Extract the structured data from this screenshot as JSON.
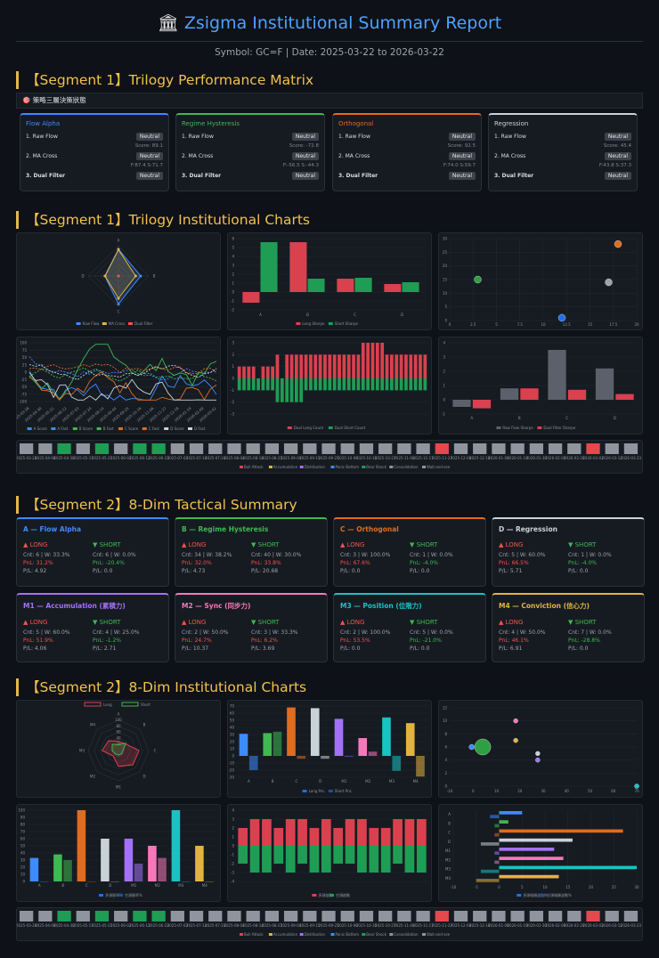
{
  "header": {
    "icon": "bank-icon",
    "title": "Zsigma Institutional Summary Report",
    "subtitle": "Symbol: GC=F | Date: 2025-03-22 to 2026-03-22"
  },
  "sections": {
    "s1": "【Segment 1】Trilogy Performance Matrix",
    "s2": "【Segment 1】Trilogy Institutional Charts",
    "s3": "【Segment 2】8-Dim Tactical Summary",
    "s4": "【Segment 2】8-Dim Institutional Charts"
  },
  "banner": "🎯 策略三層決策狀態",
  "trilogy": [
    {
      "title": "Flow Alpha",
      "color": "#3d8bff",
      "r1": "1. Raw Flow",
      "b1": "Neutral",
      "s1": "Score: 89.1",
      "r2": "2. MA Cross",
      "b2": "Neutral",
      "s2": "F:87.4 S:71.7",
      "r3": "3. Dual Filter",
      "b3": "Neutral"
    },
    {
      "title": "Regime Hysteresis",
      "color": "#3fb950",
      "r1": "1. Raw Flow",
      "b1": "Neutral",
      "s1": "Score: -72.8",
      "r2": "2. MA Cross",
      "b2": "Neutral",
      "s2": "F:-56.5 S:-44.3",
      "r3": "3. Dual Filter",
      "b3": "Neutral"
    },
    {
      "title": "Orthogonal",
      "color": "#e06c1f",
      "r1": "1. Raw Flow",
      "b1": "Neutral",
      "s1": "Score: 92.5",
      "r2": "2. MA Cross",
      "b2": "Neutral",
      "s2": "F:74.0 S:59.7",
      "r3": "3. Dual Filter",
      "b3": "Neutral"
    },
    {
      "title": "Regression",
      "color": "#c9d1d9",
      "r1": "1. Raw Flow",
      "b1": "Neutral",
      "s1": "Score: 45.4",
      "r2": "2. MA Cross",
      "b2": "Neutral",
      "s2": "F:43.8 S:37.3",
      "r3": "3. Dual Filter",
      "b3": "Neutral"
    }
  ],
  "dims": [
    {
      "title": "A — Flow Alpha",
      "color": "#3d8bff",
      "lh": "▲ LONG",
      "sh": "▼ SHORT",
      "l1": "Cnt: 6 | W: 33.3%",
      "l2": "PnL: 31.2%",
      "l3": "P/L: 4.92",
      "s1": "Cnt: 6 | W: 0.0%",
      "s2": "PnL: -20.4%",
      "s3": "P/L: 0.0"
    },
    {
      "title": "B — Regime Hysteresis",
      "color": "#3fb950",
      "lh": "▲ LONG",
      "sh": "▼ SHORT",
      "l1": "Cnt: 34 | W: 38.2%",
      "l2": "PnL: 32.0%",
      "l3": "P/L: 4.73",
      "s1": "Cnt: 40 | W: 30.0%",
      "s2": "PnL: 33.8%",
      "s3": "P/L: 20.68"
    },
    {
      "title": "C — Orthogonal",
      "color": "#e06c1f",
      "lh": "▲ LONG",
      "sh": "▼ SHORT",
      "l1": "Cnt: 3 | W: 100.0%",
      "l2": "PnL: 67.6%",
      "l3": "P/L: 0.0",
      "s1": "Cnt: 1 | W: 0.0%",
      "s2": "PnL: -4.0%",
      "s3": "P/L: 0.0"
    },
    {
      "title": "D — Regression",
      "color": "#c9d1d9",
      "lh": "▲ LONG",
      "sh": "▼ SHORT",
      "l1": "Cnt: 5 | W: 60.0%",
      "l2": "PnL: 66.5%",
      "l3": "P/L: 5.71",
      "s1": "Cnt: 1 | W: 0.0%",
      "s2": "PnL: -4.0%",
      "s3": "P/L: 0.0"
    },
    {
      "title": "M1 — Accumulation (累積力)",
      "color": "#a371f7",
      "lh": "▲ LONG",
      "sh": "▼ SHORT",
      "l1": "Cnt: 5 | W: 60.0%",
      "l2": "PnL: 51.9%",
      "l3": "P/L: 4.06",
      "s1": "Cnt: 4 | W: 25.0%",
      "s2": "PnL: -1.2%",
      "s3": "P/L: 2.71"
    },
    {
      "title": "M2 — Sync (同步力)",
      "color": "#f778ba",
      "lh": "▲ LONG",
      "sh": "▼ SHORT",
      "l1": "Cnt: 2 | W: 50.0%",
      "l2": "PnL: 24.7%",
      "l3": "P/L: 10.37",
      "s1": "Cnt: 3 | W: 33.3%",
      "s2": "PnL: 6.2%",
      "s3": "P/L: 3.69"
    },
    {
      "title": "M3 — Position (位階力)",
      "color": "#19c3c3",
      "lh": "▲ LONG",
      "sh": "▼ SHORT",
      "l1": "Cnt: 2 | W: 100.0%",
      "l2": "PnL: 53.5%",
      "l3": "P/L: 0.0",
      "s1": "Cnt: 5 | W: 0.0%",
      "s2": "PnL: -21.0%",
      "s3": "P/L: 0.0"
    },
    {
      "title": "M4 — Conviction (信心力)",
      "color": "#e3b341",
      "lh": "▲ LONG",
      "sh": "▼ SHORT",
      "l1": "Cnt: 4 | W: 50.0%",
      "l2": "PnL: 46.1%",
      "l3": "P/L: 6.91",
      "s1": "Cnt: 7 | W: 0.0%",
      "s2": "PnL: -28.8%",
      "s3": "P/L: 0.0"
    }
  ],
  "chart_data": [
    {
      "type": "radar",
      "axes": [
        "A",
        "B",
        "C",
        "D"
      ],
      "series": [
        {
          "name": "Raw Flow",
          "values": [
            89,
            -73,
            93,
            45
          ]
        },
        {
          "name": "MA Cross",
          "values": [
            87,
            -57,
            74,
            44
          ]
        },
        {
          "name": "Dual Filter",
          "values": [
            0,
            0,
            0,
            0
          ]
        }
      ]
    },
    {
      "type": "bar",
      "categories": [
        "A",
        "B",
        "C",
        "D"
      ],
      "series": [
        {
          "name": "Long Sharpe",
          "values": [
            -1.2,
            5.6,
            1.5,
            0.9
          ]
        },
        {
          "name": "Short Sharpe",
          "values": [
            5.6,
            1.5,
            1.6,
            1.1
          ]
        }
      ],
      "ylim": [
        -2,
        6
      ]
    },
    {
      "type": "scatter",
      "points": [
        {
          "x": 3,
          "y": 15
        },
        {
          "x": 12,
          "y": 1
        },
        {
          "x": 17,
          "y": 14
        },
        {
          "x": 18,
          "y": 28
        }
      ],
      "xlim": [
        0,
        20
      ],
      "ylim": [
        0,
        30
      ]
    },
    {
      "type": "line",
      "series": [
        {
          "name": "A Score"
        },
        {
          "name": "A Fast"
        },
        {
          "name": "B Score"
        },
        {
          "name": "B Fast"
        },
        {
          "name": "C Score"
        },
        {
          "name": "C Fast"
        },
        {
          "name": "D Score"
        },
        {
          "name": "D Fast"
        }
      ],
      "ylim": [
        -100,
        100
      ]
    },
    {
      "type": "bar",
      "series": [
        {
          "name": "Dual Long Count"
        },
        {
          "name": "Dual Short Count"
        }
      ],
      "ylim": [
        -3,
        3
      ]
    },
    {
      "type": "bar",
      "categories": [
        "A",
        "B",
        "C",
        "D"
      ],
      "series": [
        {
          "name": "Raw Flow Sharpe",
          "values": [
            -0.5,
            0.8,
            3.5,
            2.2
          ]
        },
        {
          "name": "Dual Filter Sharpe",
          "values": [
            -0.6,
            0.8,
            0.7,
            0.4
          ]
        }
      ],
      "ylim": [
        -1,
        4
      ]
    },
    {
      "type": "radar",
      "axes": [
        "A",
        "B",
        "C",
        "D",
        "M1",
        "M2",
        "M3",
        "M4"
      ],
      "series": [
        {
          "name": "Long",
          "values": [
            31,
            32,
            68,
            67,
            52,
            25,
            54,
            46
          ]
        },
        {
          "name": "Short",
          "values": [
            -20,
            34,
            -4,
            -4,
            -1,
            6,
            -21,
            -29
          ]
        }
      ],
      "ticks": [
        20,
        40,
        60,
        80,
        100
      ]
    },
    {
      "type": "bar",
      "categories": [
        "A",
        "B",
        "C",
        "D",
        "M1",
        "M2",
        "M3",
        "M4"
      ],
      "series": [
        {
          "name": "Long PnL",
          "values": [
            31,
            32,
            68,
            67,
            52,
            25,
            54,
            46
          ]
        },
        {
          "name": "Short PnL",
          "values": [
            -20,
            34,
            -4,
            -4,
            -1,
            6,
            -21,
            -29
          ]
        }
      ],
      "ylim": [
        -30,
        70
      ]
    },
    {
      "type": "scatter",
      "points": [
        {
          "x": 0,
          "y": 6
        },
        {
          "x": 5,
          "y": 6
        },
        {
          "x": 20,
          "y": 10
        },
        {
          "x": 20,
          "y": 7
        },
        {
          "x": 30,
          "y": 5
        },
        {
          "x": 30,
          "y": 4
        },
        {
          "x": 75,
          "y": 0
        }
      ],
      "xlim": [
        -10,
        75
      ],
      "ylim": [
        0,
        12
      ]
    },
    {
      "type": "bar",
      "categories": [
        "A",
        "B",
        "C",
        "D",
        "M1",
        "M2",
        "M3",
        "M4"
      ],
      "series": [
        {
          "name": "多頭勝率%",
          "values": [
            33,
            38,
            100,
            60,
            60,
            50,
            100,
            50
          ]
        },
        {
          "name": "空頭勝率%",
          "values": [
            0,
            30,
            0,
            0,
            25,
            33,
            0,
            0
          ]
        }
      ],
      "ylim": [
        0,
        100
      ]
    },
    {
      "type": "bar",
      "series": [
        {
          "name": "多頭啟動",
          "values": []
        },
        {
          "name": "空頭啟動",
          "values": []
        }
      ],
      "ylim": [
        -4,
        4
      ]
    },
    {
      "type": "barh",
      "categories": [
        "A",
        "B",
        "C",
        "D",
        "M1",
        "M2",
        "M3",
        "M4"
      ],
      "series": [
        {
          "name": "多頭報酬波動%",
          "values": [
            5,
            2,
            27,
            16,
            12,
            14,
            30,
            13
          ]
        },
        {
          "name": "空頭報酬波動%",
          "values": [
            -2,
            -1,
            -1,
            -4,
            -1,
            -1,
            -4,
            -5
          ]
        }
      ],
      "xlim": [
        -10,
        30
      ]
    }
  ],
  "strip": {
    "legend": [
      "Bull Attack",
      "Accumulation",
      "Distribution",
      "Panic Bottom",
      "Bear Shock",
      "Consolidation",
      "Wait-and-see"
    ],
    "dates": [
      "2025-03-28",
      "2025-04-08",
      "2025-04-30",
      "2025-05-11",
      "2025-05-21",
      "2025-06-02",
      "2025-06-12",
      "2025-06-23",
      "2025-07-03",
      "2025-07-14",
      "2025-07-24",
      "2025-08-04",
      "2025-08-14",
      "2025-08-25",
      "2025-09-04",
      "2025-09-15",
      "2025-09-25",
      "2025-10-06",
      "2025-10-16",
      "2025-10-27",
      "2025-11-06",
      "2025-11-17",
      "2025-11-27",
      "2025-12-08",
      "2025-12-18",
      "2026-01-09",
      "2026-01-19",
      "2026-01-30",
      "2026-02-09",
      "2026-02-20",
      "2026-03-02",
      "2026-03-12",
      "2026-03-23"
    ],
    "states1": [
      6,
      6,
      4,
      6,
      4,
      6,
      4,
      6,
      6,
      6,
      6,
      6,
      6,
      6,
      6,
      6,
      6,
      6,
      6,
      6,
      6,
      6,
      6,
      6,
      6,
      6,
      6,
      6,
      6,
      6,
      6,
      6,
      6
    ],
    "states2": [
      6,
      6,
      4,
      6,
      4,
      6,
      4,
      6,
      6,
      6,
      6,
      6,
      6,
      6,
      6,
      6,
      6,
      6,
      6,
      6,
      6,
      6,
      6,
      6,
      6,
      6,
      6,
      6,
      6,
      6,
      6,
      6,
      6
    ]
  }
}
